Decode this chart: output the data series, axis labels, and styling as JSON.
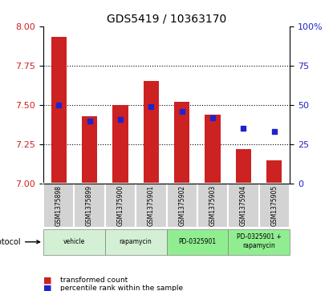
{
  "title": "GDS5419 / 10363170",
  "samples": [
    "GSM1375898",
    "GSM1375899",
    "GSM1375900",
    "GSM1375901",
    "GSM1375902",
    "GSM1375903",
    "GSM1375904",
    "GSM1375905"
  ],
  "red_values": [
    7.93,
    7.43,
    7.5,
    7.65,
    7.52,
    7.44,
    7.22,
    7.15
  ],
  "blue_values": [
    50,
    40,
    41,
    49,
    46,
    42,
    35,
    33
  ],
  "protocols": [
    {
      "label": "vehicle",
      "span": [
        0,
        2
      ],
      "color": "#d4edda"
    },
    {
      "label": "rapamycin",
      "span": [
        2,
        4
      ],
      "color": "#d4edda"
    },
    {
      "label": "PD-0325901",
      "span": [
        4,
        6
      ],
      "color": "#90ee90"
    },
    {
      "label": "PD-0325901 +\nrapamycin",
      "span": [
        6,
        8
      ],
      "color": "#90ee90"
    }
  ],
  "ylim_left": [
    7.0,
    8.0
  ],
  "ylim_right": [
    0,
    100
  ],
  "yticks_left": [
    7.0,
    7.25,
    7.5,
    7.75,
    8.0
  ],
  "yticks_right": [
    0,
    25,
    50,
    75,
    100
  ],
  "grid_values": [
    7.25,
    7.5,
    7.75
  ],
  "bar_color": "#cc2222",
  "dot_color": "#2222cc",
  "bar_width": 0.5,
  "left_tick_color": "#cc2222",
  "right_tick_color": "#2222cc",
  "background_color": "#ffffff",
  "plot_bg_color": "#ffffff",
  "sample_bg_color": "#d3d3d3",
  "protocol_colors": [
    "#d4f0d4",
    "#d4f0d4",
    "#90ee90",
    "#90ee90"
  ]
}
